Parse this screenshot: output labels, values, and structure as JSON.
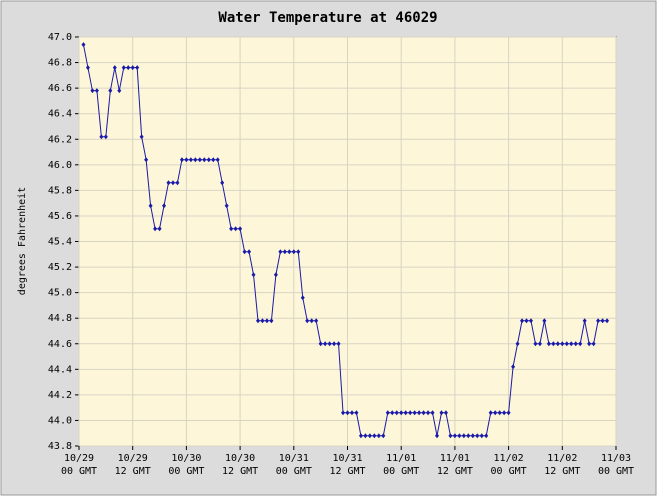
{
  "chart_data": {
    "type": "line",
    "title": "Water Temperature at 46029",
    "ylabel": "degrees Fahrenheit",
    "x": [
      1,
      2,
      3,
      4,
      5,
      6,
      7,
      8,
      9,
      10,
      11,
      12,
      13,
      14,
      15,
      16,
      17,
      18,
      19,
      20,
      21,
      22,
      23,
      24,
      25,
      26,
      27,
      28,
      29,
      30,
      31,
      32,
      33,
      34,
      35,
      36,
      37,
      38,
      39,
      40,
      41,
      42,
      43,
      44,
      45,
      46,
      47,
      48,
      49,
      50,
      51,
      52,
      53,
      54,
      55,
      56,
      57,
      58,
      59,
      60,
      61,
      62,
      63,
      64,
      65,
      66,
      67,
      68,
      69,
      70,
      71,
      72,
      73,
      74,
      75,
      76,
      77,
      78,
      79,
      80,
      81,
      82,
      83,
      84,
      85,
      86,
      87,
      88,
      89,
      90,
      91,
      92,
      93,
      94,
      95,
      96,
      97,
      98,
      99,
      100,
      101,
      102,
      103,
      104,
      105,
      106,
      107,
      108,
      109,
      110,
      111,
      112,
      113,
      114,
      115,
      116,
      117,
      118
    ],
    "values": [
      46.94,
      46.76,
      46.58,
      46.58,
      46.22,
      46.22,
      46.58,
      46.76,
      46.58,
      46.76,
      46.76,
      46.76,
      46.76,
      46.22,
      46.04,
      45.68,
      45.5,
      45.5,
      45.68,
      45.86,
      45.86,
      45.86,
      46.04,
      46.04,
      46.04,
      46.04,
      46.04,
      46.04,
      46.04,
      46.04,
      46.04,
      45.86,
      45.68,
      45.5,
      45.5,
      45.5,
      45.32,
      45.32,
      45.14,
      44.78,
      44.78,
      44.78,
      44.78,
      45.14,
      45.32,
      45.32,
      45.32,
      45.32,
      45.32,
      44.96,
      44.78,
      44.78,
      44.78,
      44.6,
      44.6,
      44.6,
      44.6,
      44.6,
      44.06,
      44.06,
      44.06,
      44.06,
      43.88,
      43.88,
      43.88,
      43.88,
      43.88,
      43.88,
      44.06,
      44.06,
      44.06,
      44.06,
      44.06,
      44.06,
      44.06,
      44.06,
      44.06,
      44.06,
      44.06,
      43.88,
      44.06,
      44.06,
      43.88,
      43.88,
      43.88,
      43.88,
      43.88,
      43.88,
      43.88,
      43.88,
      43.88,
      44.06,
      44.06,
      44.06,
      44.06,
      44.06,
      44.42,
      44.6,
      44.78,
      44.78,
      44.78,
      44.6,
      44.6,
      44.78,
      44.6,
      44.6,
      44.6,
      44.6,
      44.6,
      44.6,
      44.6,
      44.6,
      44.78,
      44.6,
      44.6,
      44.78,
      44.78,
      44.78
    ],
    "color": "#1a1aa8",
    "xlim": [
      0,
      120
    ],
    "xticks": [
      {
        "value": 0,
        "label": "10/29 00 GMT"
      },
      {
        "value": 12,
        "label": "10/29 12 GMT"
      },
      {
        "value": 24,
        "label": "10/30 00 GMT"
      },
      {
        "value": 36,
        "label": "10/30 12 GMT"
      },
      {
        "value": 48,
        "label": "10/31 00 GMT"
      },
      {
        "value": 60,
        "label": "10/31 12 GMT"
      },
      {
        "value": 72,
        "label": "11/01 00 GMT"
      },
      {
        "value": 84,
        "label": "11/01 12 GMT"
      },
      {
        "value": 96,
        "label": "11/02 00 GMT"
      },
      {
        "value": 108,
        "label": "11/02 12 GMT"
      },
      {
        "value": 120,
        "label": "11/03 00 GMT"
      }
    ],
    "ylim": [
      43.8,
      47.0
    ],
    "yticks": [
      43.8,
      {
        "value": 44.0,
        "label": "44.0"
      },
      44.2,
      44.4,
      44.6,
      44.8,
      {
        "value": 45.0,
        "label": "45.0"
      },
      45.2,
      45.4,
      45.6,
      45.8,
      {
        "value": 46.0,
        "label": "46.0"
      },
      46.2,
      46.4,
      46.6,
      46.8,
      {
        "value": 47.0,
        "label": "47.0"
      }
    ],
    "grid": true
  }
}
